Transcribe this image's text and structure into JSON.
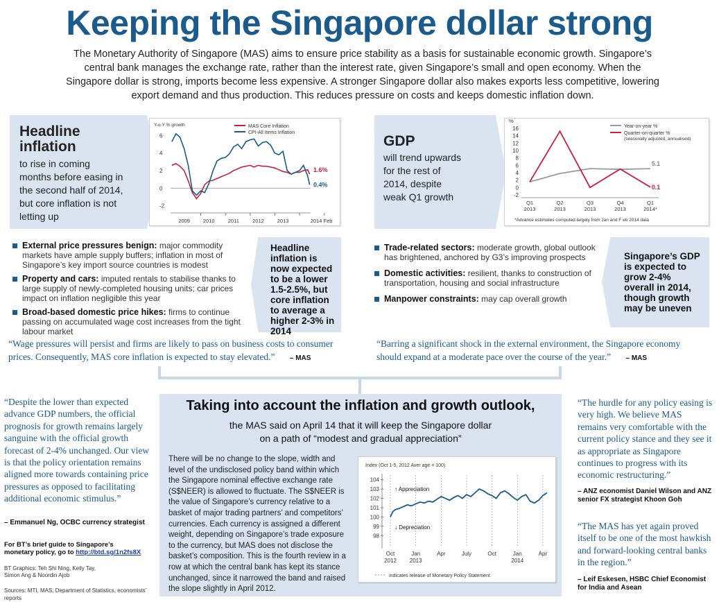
{
  "title": "Keeping the Singapore dollar strong",
  "intro": "The Monetary Authority of Singapore (MAS) aims to ensure price stability as a basis for sustainable economic growth. Singapore’s central bank manages the exchange rate, rather than the interest rate, given Singapore’s small and open economy. When the Singapore dollar is strong, imports become less expensive. A stronger Singapore dollar also makes exports less competitive, lowering export demand and thus production. This reduces pressure on costs and keeps domestic inflation down.",
  "inflation_panel": {
    "heading_line1": "Headline",
    "heading_line2": "inflation",
    "text": "to rise in coming months before easing in the second half of 2014, but core inflation is not letting up",
    "bullets": [
      {
        "head": "External price pressures benign:",
        "text": "major commodity markets have ample supply buffers; inflation in most of Singapore’s key import source countries is modest"
      },
      {
        "head": "Property and cars:",
        "text": "imputed rentals to stabilise thanks to large supply of newly-completed housing units; car prices impact on inflation negligible this year"
      },
      {
        "head": "Broad-based domestic price hikes:",
        "text": "firms to continue passing on accumulated wage cost increases from the tight labour market"
      }
    ],
    "callout": "Headline inflation is now expected to be a lower 1.5-2.5%, but core inflation to average a higher 2-3% in 2014",
    "quote": "“Wage pressures will persist and firms are likely to pass on business costs to consumer prices. Consequently, MAS core inflation is expected to stay elevated.”",
    "quote_attrib": "– MAS"
  },
  "gdp_panel": {
    "heading": "GDP",
    "text": "will trend upwards for the rest of 2014, despite weak Q1 growth",
    "bullets": [
      {
        "head": "Trade-related sectors:",
        "text": "moderate growth, global outlook has brightened, anchored by G3’s improving prospects"
      },
      {
        "head": "Domestic activities:",
        "text": "resilient, thanks to construction of transportation, housing and social infrastructure"
      },
      {
        "head": "Manpower constraints:",
        "text": "may cap overall growth"
      }
    ],
    "callout": "Singapore’s GDP is expected to grow 2-4% overall in 2014, though growth may be uneven",
    "quote": "“Barring a significant shock in the external environment, the Singapore economy should expand at a moderate pace over the course of the year.”",
    "quote_attrib": "– MAS"
  },
  "left_quote": {
    "text": "“Despite the lower than expected advance GDP numbers, the official prognosis for growth remains largely sanguine with the official growth forecast of 2-4% unchanged. Our view is that the policy orientation remains aligned more towards containing price pressures as opposed to facilitating additional economic stimulus.”",
    "attrib": "– Emmanuel Ng, OCBC currency strategist"
  },
  "guide": {
    "text": "For BT’s brief guide to Singapore’s monetary policy, go to",
    "link": "http://btd.sg/1n2fs8X"
  },
  "credits": {
    "graphics": "BT Graphics: Teh Shi Ning, Kelly Tay, Simon Ang & Noordin Ajob",
    "sources": "Sources: MTI, MAS, Department of Statistics, economists’ reports"
  },
  "middle": {
    "title": "Taking into account the inflation and growth outlook,",
    "subtitle_line1": "the MAS said on April 14 that it will keep the Singapore dollar",
    "subtitle_line2": "on a path of “modest and  gradual appreciation”",
    "body": "There will be no change to the slope, width and level of the undisclosed policy band within which the Singapore nominal effective exchange rate (S$NEER) is allowed to fluctuate. The S$NEER is the value of Singapore’s currency relative to a basket of major trading partners’ and competitors’ currencies. Each currency is assigned a different weight, depending on Singapore’s trade exposure to the currency, but MAS does not disclose the basket’s composition. This is the fourth review in a row at which the central bank has kept its stance unchanged, since it narrowed the band and raised the slope slightly in April 2012."
  },
  "right_quotes": [
    {
      "text": "“The hurdle for any policy easing is very high. We believe MAS remains very comfortable with the current policy stance and they see it as appropriate as Singapore continues to progress with its economic restructuring.”",
      "attrib": "– ANZ economist Daniel Wilson and ANZ senior FX strategist Khoon Goh"
    },
    {
      "text": "“The MAS has yet again proved itself to be one of the most hawkish and forward-looking central banks in the region.”",
      "attrib": "– Leif Eskesen, HSBC Chief Economist for India and Asean"
    }
  ],
  "colors": {
    "accent_blue": "#1b5a8c",
    "panel_blue": "#d9e4f0",
    "red_series": "#c8203c",
    "gray_series": "#9a9a9a"
  },
  "chart_data": [
    {
      "type": "line",
      "ylabel": "Y-o-Y % growth",
      "ylim": [
        -2.5,
        6.5
      ],
      "yticks": [
        "6",
        "4",
        "2",
        "0",
        "-2"
      ],
      "xticks": [
        "2009",
        "2010",
        "2011",
        "2012",
        "2013",
        "2014 Feb"
      ],
      "series": [
        {
          "name": "MAS Core Inflation",
          "color": "#c8203c",
          "x": [
            2008.5,
            2008.67,
            2008.83,
            2009.0,
            2009.17,
            2009.33,
            2009.5,
            2009.67,
            2009.83,
            2010.0,
            2010.17,
            2010.33,
            2010.5,
            2010.67,
            2010.83,
            2011.0,
            2011.17,
            2011.33,
            2011.5,
            2011.67,
            2011.83,
            2012.0,
            2012.17,
            2012.33,
            2012.5,
            2012.67,
            2012.83,
            2013.0,
            2013.17,
            2013.33,
            2013.5,
            2013.67,
            2013.83,
            2014.0,
            2014.08
          ],
          "values": [
            2.6,
            2.8,
            2.5,
            2.0,
            0.8,
            -0.5,
            -1.2,
            -0.6,
            0.4,
            0.8,
            0.9,
            1.1,
            1.3,
            1.5,
            1.7,
            2.0,
            2.2,
            2.4,
            2.5,
            2.6,
            2.4,
            2.6,
            2.5,
            2.5,
            2.4,
            2.3,
            2.1,
            1.9,
            1.8,
            1.6,
            1.8,
            1.8,
            2.0,
            2.1,
            1.6
          ]
        },
        {
          "name": "CPI-All Items Inflation",
          "color": "#1b5a8c",
          "x": [
            2008.5,
            2008.67,
            2008.83,
            2009.0,
            2009.17,
            2009.33,
            2009.5,
            2009.67,
            2009.83,
            2010.0,
            2010.17,
            2010.33,
            2010.5,
            2010.67,
            2010.83,
            2011.0,
            2011.17,
            2011.33,
            2011.5,
            2011.67,
            2011.83,
            2012.0,
            2012.17,
            2012.33,
            2012.5,
            2012.67,
            2012.83,
            2013.0,
            2013.17,
            2013.33,
            2013.5,
            2013.67,
            2013.83,
            2014.0,
            2014.08
          ],
          "values": [
            5.3,
            6.2,
            5.8,
            4.5,
            2.5,
            -0.3,
            -0.8,
            -0.3,
            -0.5,
            0.5,
            2.0,
            3.1,
            3.4,
            3.5,
            3.9,
            4.7,
            5.0,
            4.5,
            5.3,
            5.5,
            5.6,
            4.8,
            5.2,
            5.3,
            4.9,
            4.0,
            3.8,
            4.2,
            2.0,
            1.6,
            1.8,
            2.0,
            2.6,
            1.4,
            0.4
          ]
        }
      ],
      "labels": [
        {
          "text": "1.6%",
          "series": "MAS Core Inflation"
        },
        {
          "text": "0.4%",
          "series": "CPI-All Items Inflation"
        }
      ]
    },
    {
      "type": "line",
      "ylabel": "%",
      "ylim": [
        -2,
        16
      ],
      "yticks": [
        "16",
        "14",
        "12",
        "10",
        "8",
        "6",
        "4",
        "2",
        "0",
        "-2"
      ],
      "categories": [
        "Q1 2013",
        "Q2 2013",
        "Q3 2013",
        "Q4 2013",
        "Q1 2014*"
      ],
      "series": [
        {
          "name": "Year-on-year %",
          "color": "#9a9a9a",
          "values": [
            1.5,
            3.8,
            5.1,
            4.9,
            5.1
          ]
        },
        {
          "name": "Quarter-on-quarter % (seasonally adjusted, annualised)",
          "color": "#c8203c",
          "values": [
            1.5,
            15.2,
            0.0,
            5.0,
            0.1
          ]
        }
      ],
      "labels": [
        {
          "text": "5.1",
          "series": "Year-on-year %"
        },
        {
          "text": "0.1",
          "series": "Quarter-on-quarter % (seasonally adjusted, annualised)"
        }
      ],
      "note": "*Advance estimates computed largely from Jan and F   eb 2014 data"
    },
    {
      "type": "line",
      "ylabel": "Index (Oct 1-5, 2012 Aver age = 100)",
      "ylim": [
        97.5,
        104.5
      ],
      "yticks": [
        "104",
        "103",
        "102",
        "101",
        "100",
        "99",
        "98"
      ],
      "xticks": [
        "Oct 2012",
        "Jan 2013",
        "Apr",
        "July",
        "Oct",
        "Jan 2014",
        "Apr"
      ],
      "series": [
        {
          "name": "S$NEER",
          "color": "#1b5a8c",
          "x": [
            0,
            0.3,
            0.6,
            1,
            1.5,
            2,
            2.5,
            3,
            3.5,
            4,
            4.5,
            5,
            5.5,
            6,
            6.5,
            7,
            7.5,
            8,
            8.5,
            9,
            9.5,
            10,
            10.5,
            11,
            11.5,
            12,
            12.5,
            13,
            13.5,
            14,
            14.5,
            15,
            15.5,
            16,
            16.5,
            17,
            17.5,
            18,
            18.5
          ],
          "values": [
            100.0,
            100.6,
            100.8,
            100.9,
            101.1,
            101.3,
            101.2,
            101.4,
            101.6,
            101.5,
            101.7,
            101.6,
            101.9,
            102.2,
            102.0,
            101.8,
            102.1,
            102.3,
            102.0,
            102.4,
            102.2,
            102.6,
            103.0,
            102.8,
            102.5,
            102.3,
            102.0,
            102.6,
            102.8,
            102.5,
            102.1,
            101.8,
            102.2,
            102.4,
            101.7,
            101.5,
            101.8,
            102.3,
            102.6
          ]
        }
      ],
      "annotations": [
        "Appreciation",
        "Depreciation"
      ],
      "legend_note": "indicates release of Monetary Policy Statement"
    }
  ]
}
